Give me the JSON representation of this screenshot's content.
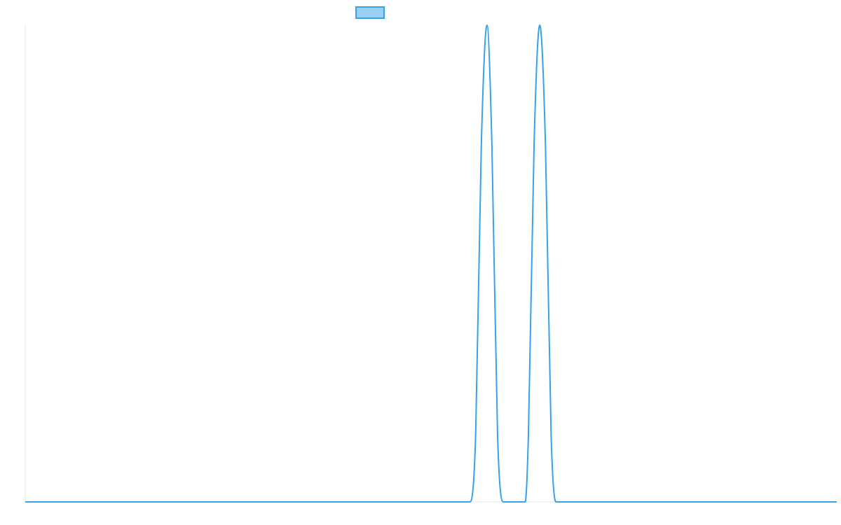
{
  "chart_data": {
    "type": "line",
    "title": "",
    "xlabel": "",
    "ylabel": "",
    "grid": false,
    "legend": "top-center",
    "colors": {
      "line": "#36a2eb",
      "legend_fill": "#9ad0f5",
      "axis": "#e6e6e6"
    },
    "xlim": [
      0,
      1000
    ],
    "ylim": [
      0,
      1
    ],
    "series": [
      {
        "label": "",
        "x": [
          0,
          548,
          555,
          562,
          569,
          575,
          582,
          589,
          596,
          603,
          607,
          616,
          620,
          627,
          634,
          641,
          648,
          654,
          661,
          667,
          1000
        ],
        "values": [
          0,
          0,
          0.14,
          0.75,
          1.0,
          0.75,
          0.14,
          0,
          0,
          0,
          0,
          0,
          0.14,
          0.75,
          1.0,
          0.75,
          0.14,
          0,
          0,
          0,
          0
        ]
      }
    ]
  }
}
